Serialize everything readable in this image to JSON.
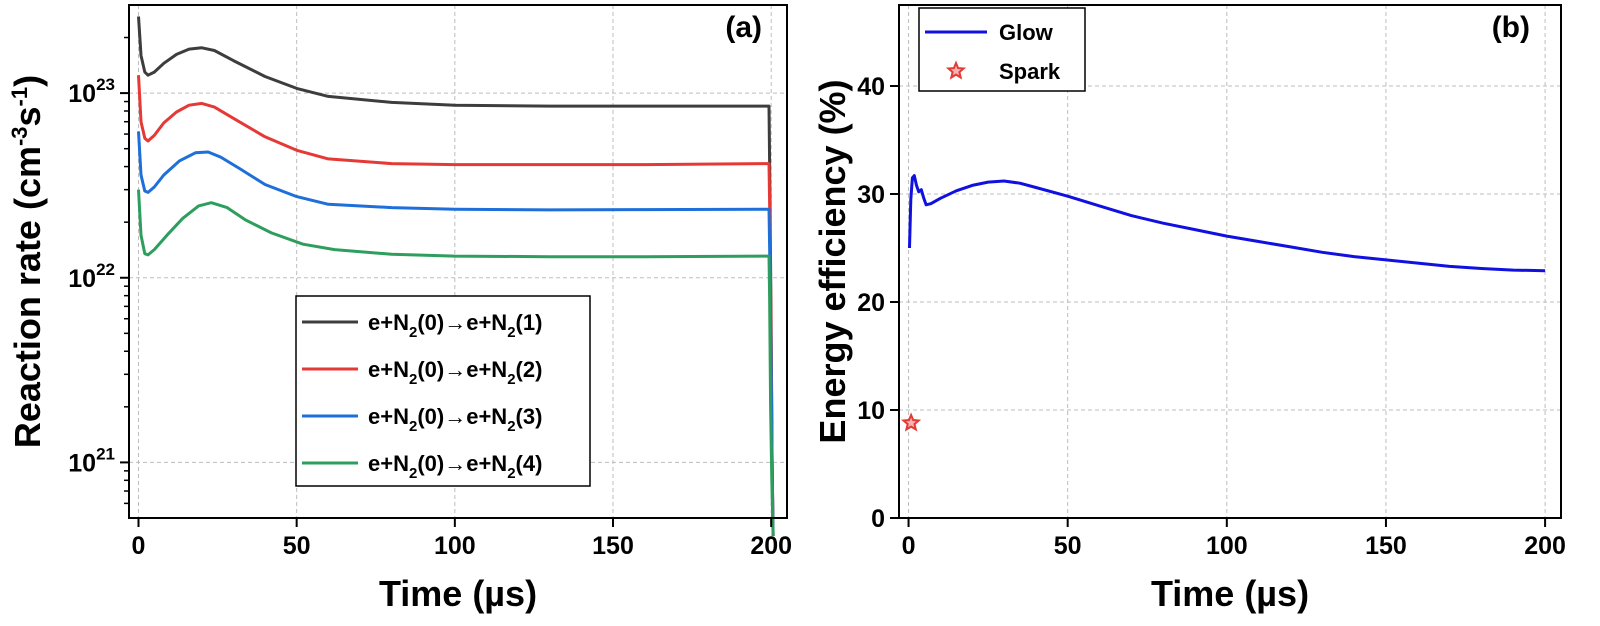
{
  "chart_data": [
    {
      "panel": "(a)",
      "type": "line",
      "xlabel": "Time (µs)",
      "ylabel_parts": [
        "Reaction rate (cm",
        "-3",
        "s",
        "-1",
        ")"
      ],
      "ylog": true,
      "xlim": [
        -3,
        205
      ],
      "ylim": [
        5e+20,
        3e+23
      ],
      "xticks": [
        0,
        50,
        100,
        150,
        200
      ],
      "yticks": [
        {
          "value": 1e+21,
          "base": "10",
          "exp": "21"
        },
        {
          "value": 1e+22,
          "base": "10",
          "exp": "22"
        },
        {
          "value": 1e+23,
          "base": "10",
          "exp": "23"
        }
      ],
      "grid": true,
      "legend_position": "center-right",
      "series": [
        {
          "label_parts": [
            "e+N",
            "2",
            "(0)→e+N",
            "2",
            "(1)"
          ],
          "color": "#3d3d3d",
          "points": [
            [
              0,
              2.6e+23
            ],
            [
              0.8,
              1.6e+23
            ],
            [
              2,
              1.3e+23
            ],
            [
              3,
              1.25e+23
            ],
            [
              5,
              1.3e+23
            ],
            [
              8,
              1.45e+23
            ],
            [
              12,
              1.62e+23
            ],
            [
              16,
              1.73e+23
            ],
            [
              20,
              1.76e+23
            ],
            [
              24,
              1.7e+23
            ],
            [
              30,
              1.5e+23
            ],
            [
              40,
              1.23e+23
            ],
            [
              50,
              1.06e+23
            ],
            [
              60,
              9.6e+22
            ],
            [
              80,
              8.9e+22
            ],
            [
              100,
              8.6e+22
            ],
            [
              130,
              8.5e+22
            ],
            [
              160,
              8.5e+22
            ],
            [
              199.3,
              8.5e+22
            ],
            [
              199.6,
              3e+22
            ],
            [
              200,
              5e+21
            ],
            [
              200.3,
              1e+21
            ],
            [
              200.6,
              4e+20
            ]
          ]
        },
        {
          "label_parts": [
            "e+N",
            "2",
            "(0)→e+N",
            "2",
            "(2)"
          ],
          "color": "#e53935",
          "points": [
            [
              0,
              1.25e+23
            ],
            [
              0.8,
              7e+22
            ],
            [
              2,
              5.7e+22
            ],
            [
              3,
              5.5e+22
            ],
            [
              5,
              5.9e+22
            ],
            [
              8,
              6.9e+22
            ],
            [
              12,
              7.9e+22
            ],
            [
              16,
              8.6e+22
            ],
            [
              20,
              8.8e+22
            ],
            [
              24,
              8.4e+22
            ],
            [
              30,
              7.3e+22
            ],
            [
              40,
              5.8e+22
            ],
            [
              50,
              4.9e+22
            ],
            [
              60,
              4.4e+22
            ],
            [
              80,
              4.15e+22
            ],
            [
              100,
              4.1e+22
            ],
            [
              130,
              4.1e+22
            ],
            [
              160,
              4.1e+22
            ],
            [
              199.3,
              4.15e+22
            ],
            [
              199.6,
              2e+22
            ],
            [
              200,
              4e+21
            ],
            [
              200.3,
              1e+21
            ],
            [
              200.6,
              4e+20
            ]
          ]
        },
        {
          "label_parts": [
            "e+N",
            "2",
            "(0)→e+N",
            "2",
            "(3)"
          ],
          "color": "#1e6fd9",
          "points": [
            [
              0,
              6.2e+22
            ],
            [
              0.8,
              3.6e+22
            ],
            [
              2,
              2.95e+22
            ],
            [
              3,
              2.9e+22
            ],
            [
              5,
              3.1e+22
            ],
            [
              8,
              3.6e+22
            ],
            [
              13,
              4.3e+22
            ],
            [
              18,
              4.75e+22
            ],
            [
              22,
              4.8e+22
            ],
            [
              26,
              4.5e+22
            ],
            [
              32,
              3.9e+22
            ],
            [
              40,
              3.2e+22
            ],
            [
              50,
              2.75e+22
            ],
            [
              60,
              2.5e+22
            ],
            [
              80,
              2.4e+22
            ],
            [
              100,
              2.35e+22
            ],
            [
              130,
              2.33e+22
            ],
            [
              160,
              2.34e+22
            ],
            [
              199.3,
              2.35e+22
            ],
            [
              199.6,
              1.2e+22
            ],
            [
              200,
              3e+21
            ],
            [
              200.3,
              1e+21
            ],
            [
              200.6,
              4e+20
            ]
          ]
        },
        {
          "label_parts": [
            "e+N",
            "2",
            "(0)→e+N",
            "2",
            "(4)"
          ],
          "color": "#2e9e5e",
          "points": [
            [
              0,
              3e+22
            ],
            [
              0.8,
              1.7e+22
            ],
            [
              2,
              1.35e+22
            ],
            [
              3,
              1.33e+22
            ],
            [
              5,
              1.42e+22
            ],
            [
              9,
              1.7e+22
            ],
            [
              14,
              2.1e+22
            ],
            [
              19,
              2.45e+22
            ],
            [
              23,
              2.55e+22
            ],
            [
              28,
              2.4e+22
            ],
            [
              34,
              2.05e+22
            ],
            [
              42,
              1.75e+22
            ],
            [
              52,
              1.52e+22
            ],
            [
              62,
              1.42e+22
            ],
            [
              80,
              1.34e+22
            ],
            [
              100,
              1.31e+22
            ],
            [
              130,
              1.3e+22
            ],
            [
              160,
              1.3e+22
            ],
            [
              199.3,
              1.31e+22
            ],
            [
              199.5,
              8e+21
            ],
            [
              199.8,
              2e+21
            ],
            [
              200.2,
              8e+20
            ],
            [
              200.6,
              4e+20
            ]
          ]
        }
      ]
    },
    {
      "panel": "(b)",
      "type": "line",
      "xlabel": "Time (µs)",
      "ylabel": "Energy efficiency (%)",
      "ylog": false,
      "xlim": [
        -3,
        205
      ],
      "ylim": [
        0,
        47.5
      ],
      "xticks": [
        0,
        50,
        100,
        150,
        200
      ],
      "yticks": [
        0,
        10,
        20,
        30,
        40
      ],
      "grid": true,
      "legend_position": "top-left",
      "series": [
        {
          "label": "Glow",
          "color": "#1010e0",
          "marker": "none",
          "points": [
            [
              0.3,
              25
            ],
            [
              0.7,
              29.5
            ],
            [
              1.2,
              31.5
            ],
            [
              1.8,
              31.7
            ],
            [
              2.5,
              30.8
            ],
            [
              3.2,
              30.2
            ],
            [
              4,
              30.4
            ],
            [
              4.8,
              29.6
            ],
            [
              5.5,
              29
            ],
            [
              7,
              29.1
            ],
            [
              10,
              29.6
            ],
            [
              15,
              30.3
            ],
            [
              20,
              30.8
            ],
            [
              25,
              31.1
            ],
            [
              30,
              31.2
            ],
            [
              35,
              31
            ],
            [
              40,
              30.6
            ],
            [
              50,
              29.8
            ],
            [
              60,
              28.9
            ],
            [
              70,
              28
            ],
            [
              80,
              27.3
            ],
            [
              90,
              26.7
            ],
            [
              100,
              26.1
            ],
            [
              110,
              25.6
            ],
            [
              120,
              25.1
            ],
            [
              130,
              24.6
            ],
            [
              140,
              24.2
            ],
            [
              150,
              23.9
            ],
            [
              160,
              23.6
            ],
            [
              170,
              23.3
            ],
            [
              180,
              23.1
            ],
            [
              190,
              22.95
            ],
            [
              200,
              22.9
            ]
          ]
        },
        {
          "label": "Spark",
          "color": "#e53935",
          "marker": "star",
          "points": [
            [
              0.8,
              8.8
            ]
          ]
        }
      ]
    }
  ]
}
